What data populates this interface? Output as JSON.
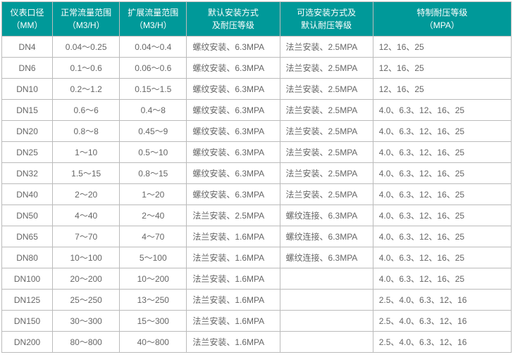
{
  "headers": [
    "仪表口径\n（MM）",
    "正常流量范围\n（M3/H）",
    "扩展流量范围\n（M3/H）",
    "默认安装方式\n及耐压等级",
    "可选安装方式及\n默认耐压等级",
    "特制耐压等级\n（MPA）"
  ],
  "col_align": [
    "center",
    "center",
    "center",
    "left",
    "left",
    "left"
  ],
  "col_widths": [
    "col0",
    "col1",
    "col2",
    "col3",
    "col4",
    "col5"
  ],
  "rows": [
    [
      "DN4",
      "0.04～0.25",
      "0.04～0.4",
      "螺纹安装、6.3MPA",
      "法兰安装、2.5MPA",
      "12、16、25"
    ],
    [
      "DN6",
      "0.1～0.6",
      "0.06～0.6",
      "螺纹安装、6.3MPA",
      "法兰安装、2.5MPA",
      "12、16、25"
    ],
    [
      "DN10",
      "0.2～1.2",
      "0.15～1.5",
      "螺纹安装、6.3MPA",
      "法兰安装、2.5MPA",
      "12、16、25"
    ],
    [
      "DN15",
      "0.6～6",
      "0.4～8",
      "螺纹安装、6.3MPA",
      "法兰安装、2.5MPA",
      "4.0、6.3、12、16、25"
    ],
    [
      "DN20",
      "0.8～8",
      "0.45～9",
      "螺纹安装、6.3MPA",
      "法兰安装、2.5MPA",
      "4.0、6.3、12、16、25"
    ],
    [
      "DN25",
      "1～10",
      "0.5～10",
      "螺纹安装、6.3MPA",
      "法兰安装、2.5MPA",
      "4.0、6.3、12、16、25"
    ],
    [
      "DN32",
      "1.5～15",
      "0.8～15",
      "螺纹安装、6.3MPA",
      "法兰安装、2.5MPA",
      "4.0、6.3、12、16、25"
    ],
    [
      "DN40",
      "2～20",
      "1～20",
      "螺纹安装、6.3MPA",
      "法兰安装、2.5MPA",
      "4.0、6.3、12、16、25"
    ],
    [
      "DN50",
      "4～40",
      "2～40",
      "法兰安装、2.5MPA",
      "螺纹连接、6.3MPA",
      "4.0、6.3、12、16、25"
    ],
    [
      "DN65",
      "7～70",
      "4～70",
      "法兰安装、1.6MPA",
      "螺纹连接、6.3MPA",
      "4.0、6.3、12、16、25"
    ],
    [
      "DN80",
      "10～100",
      "5～100",
      "法兰安装、1.6MPA",
      "螺纹连接、6.3MPA",
      "4.0、6.3、12、16、25"
    ],
    [
      "DN100",
      "20～200",
      "10～200",
      "法兰安装、1.6MPA",
      "",
      "4.0、6.3、12、16、25"
    ],
    [
      "DN125",
      "25～250",
      "13～250",
      "法兰安装、1.6MPA",
      "",
      "2.5、4.0、6.3、12、16"
    ],
    [
      "DN150",
      "30～300",
      "15～300",
      "法兰安装、1.6MPA",
      "",
      "2.5、4.0、6.3、12、16"
    ],
    [
      "DN200",
      "80～800",
      "40～800",
      "法兰安装、1.6MPA",
      "",
      "2.5、4.0、6.3、12、16"
    ]
  ]
}
